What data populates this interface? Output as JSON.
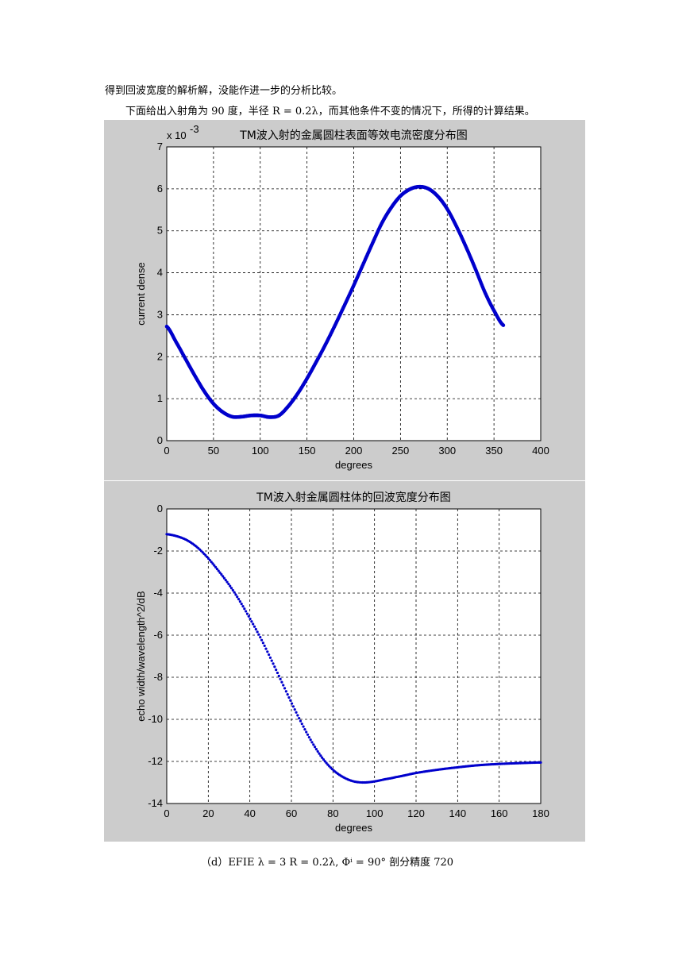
{
  "text": {
    "para1": "得到回波宽度的解析解，没能作进一步的分析比较。",
    "para2": "下面给出入射角为 90 度，半径 R = 0.2λ，而其他条件不变的情况下，所得的计算结果。",
    "caption": "（d）EFIE  λ = 3  R = 0.2λ, Φⁱ = 90°  剖分精度 720"
  },
  "colors": {
    "series": "#0000cc",
    "figure_bg": "#cccccc",
    "grid": "#000000"
  },
  "chart_data": [
    {
      "type": "scatter",
      "title": "TM波入射的金属圆柱表面等效电流密度分布图",
      "xlabel": "degrees",
      "ylabel": "current dense",
      "exponent_label": "x 10",
      "exponent_power": "-3",
      "xlim": [
        0,
        400
      ],
      "ylim": [
        0,
        7
      ],
      "xticks": [
        "0",
        "50",
        "100",
        "150",
        "200",
        "250",
        "300",
        "350",
        "400"
      ],
      "yticks": [
        "0",
        "1",
        "2",
        "3",
        "4",
        "5",
        "6",
        "7"
      ],
      "grid": true,
      "series": [
        {
          "x": [
            0,
            10,
            20,
            30,
            40,
            50,
            60,
            70,
            80,
            90,
            100,
            110,
            120,
            130,
            140,
            150,
            160,
            170,
            180,
            190,
            200,
            210,
            220,
            230,
            240,
            250,
            260,
            270,
            280,
            290,
            300,
            310,
            320,
            330,
            340,
            350,
            360
          ],
          "y": [
            2.72,
            2.35,
            1.95,
            1.55,
            1.18,
            0.88,
            0.68,
            0.57,
            0.57,
            0.6,
            0.6,
            0.56,
            0.6,
            0.82,
            1.12,
            1.48,
            1.88,
            2.3,
            2.75,
            3.22,
            3.7,
            4.2,
            4.7,
            5.18,
            5.55,
            5.83,
            5.99,
            6.05,
            6.0,
            5.82,
            5.52,
            5.1,
            4.62,
            4.1,
            3.55,
            3.1,
            2.75
          ]
        }
      ]
    },
    {
      "type": "scatter",
      "title": "TM波入射金属圆柱体的回波宽度分布图",
      "xlabel": "degrees",
      "ylabel": "echo width/wavelength^2/dB",
      "xlim": [
        0,
        180
      ],
      "ylim": [
        -14,
        0
      ],
      "xticks": [
        "0",
        "20",
        "40",
        "60",
        "80",
        "100",
        "120",
        "140",
        "160",
        "180"
      ],
      "yticks": [
        "0",
        "-2",
        "-4",
        "-6",
        "-8",
        "-10",
        "-12",
        "-14"
      ],
      "grid": true,
      "series": [
        {
          "x": [
            0,
            5,
            10,
            15,
            20,
            25,
            30,
            35,
            40,
            45,
            50,
            55,
            60,
            65,
            70,
            75,
            80,
            85,
            90,
            95,
            100,
            105,
            110,
            120,
            130,
            140,
            150,
            160,
            170,
            180
          ],
          "y": [
            -1.2,
            -1.3,
            -1.5,
            -1.85,
            -2.35,
            -2.95,
            -3.6,
            -4.35,
            -5.2,
            -6.1,
            -7.1,
            -8.15,
            -9.2,
            -10.2,
            -11.1,
            -11.85,
            -12.4,
            -12.75,
            -12.95,
            -13.0,
            -12.95,
            -12.85,
            -12.75,
            -12.55,
            -12.4,
            -12.28,
            -12.18,
            -12.12,
            -12.08,
            -12.05
          ]
        }
      ]
    }
  ]
}
